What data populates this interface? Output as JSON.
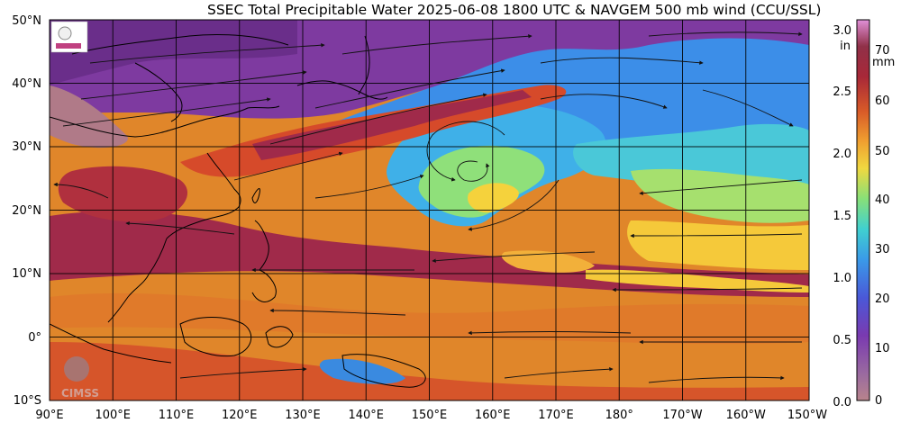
{
  "title": "SSEC Total Precipitable Water  2025-06-08 1800 UTC & NAVGEM 500 mb wind (CCU/SSL)",
  "lat_labels": [
    "50°N",
    "40°N",
    "30°N",
    "20°N",
    "10°N",
    "0°",
    "10°S"
  ],
  "lon_labels": [
    "90°E",
    "100°E",
    "110°E",
    "120°E",
    "130°E",
    "140°E",
    "150°E",
    "160°E",
    "170°E",
    "180°",
    "170°W",
    "160°W",
    "150°W"
  ],
  "colorbar": {
    "in_unit": "in",
    "mm_unit": "mm",
    "in_ticks": [
      "3.0",
      "2.5",
      "2.0",
      "1.5",
      "1.0",
      "0.5",
      "0.0"
    ],
    "mm_ticks": [
      "70",
      "60",
      "50",
      "40",
      "30",
      "20",
      "10",
      "0"
    ]
  },
  "logo_text": "CIMSS",
  "colors": {
    "very_dry": "#b07a88",
    "dry": "#7e3aa0",
    "blue": "#3c8ee8",
    "cyan": "#40c8e0",
    "green": "#8fe07a",
    "yellow": "#f5d23c",
    "orange": "#f39a2a",
    "red": "#d64a2a",
    "maroon": "#a02a4a"
  }
}
